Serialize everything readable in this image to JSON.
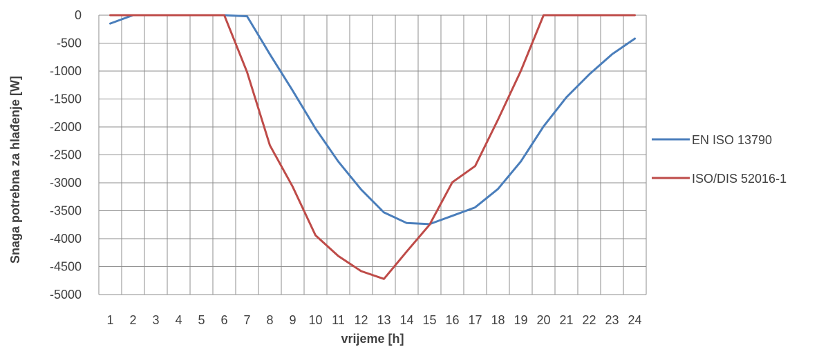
{
  "chart_data": {
    "type": "line",
    "title": "",
    "xlabel": "vrijeme  [h]",
    "ylabel": "Snaga potrebna za hlađenje  [W]",
    "x": [
      "1",
      "2",
      "3",
      "4",
      "5",
      "6",
      "7",
      "8",
      "9",
      "10",
      "11",
      "12",
      "13",
      "14",
      "15",
      "16",
      "17",
      "18",
      "19",
      "20",
      "21",
      "22",
      "23",
      "24"
    ],
    "ylim": [
      -5000,
      0
    ],
    "yticks": [
      "0",
      "-500",
      "-1000",
      "-1500",
      "-2000",
      "-2500",
      "-3000",
      "-3500",
      "-4000",
      "-4500",
      "-5000"
    ],
    "grid": true,
    "legend_position": "right",
    "series": [
      {
        "name": "EN ISO 13790",
        "color": "#4a7ebb",
        "values": [
          -150,
          0,
          0,
          0,
          0,
          0,
          -20,
          -700,
          -1350,
          -2030,
          -2620,
          -3120,
          -3530,
          -3720,
          -3740,
          -3590,
          -3440,
          -3110,
          -2620,
          -1990,
          -1470,
          -1060,
          -700,
          -420
        ]
      },
      {
        "name": "ISO/DIS 52016-1",
        "color": "#be4b48",
        "values": [
          0,
          0,
          0,
          0,
          0,
          0,
          -1020,
          -2330,
          -3070,
          -3940,
          -4310,
          -4580,
          -4720,
          -4230,
          -3750,
          -2990,
          -2700,
          -1870,
          -1000,
          0,
          0,
          0,
          0,
          0
        ]
      }
    ]
  }
}
